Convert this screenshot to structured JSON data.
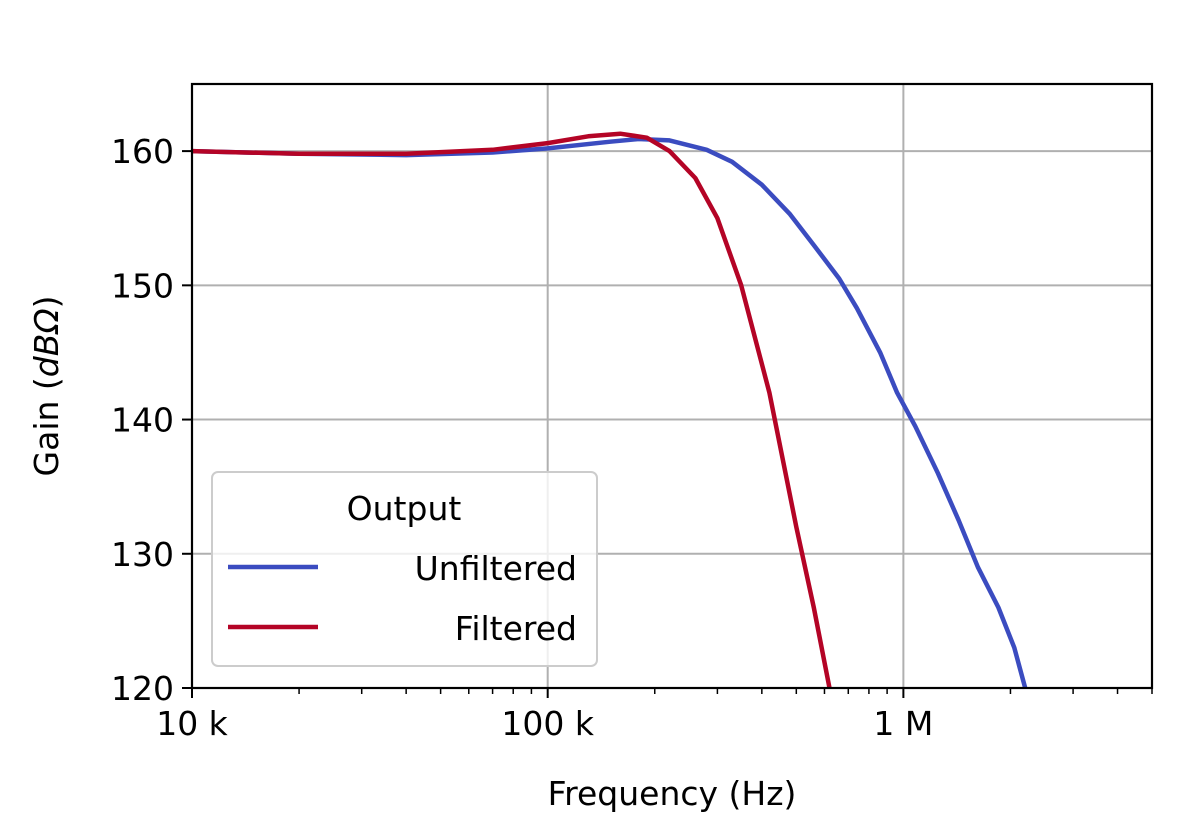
{
  "chart_data": {
    "type": "line",
    "title": "",
    "xlabel": "Frequency (Hz)",
    "ylabel_prefix": "Gain (",
    "ylabel_unit": "dBΩ",
    "ylabel_suffix": ")",
    "x_scale": "log",
    "xlim": [
      10000,
      5000000
    ],
    "ylim": [
      120,
      165
    ],
    "grid": true,
    "x_ticks": [
      {
        "value": 10000,
        "label": "10 k"
      },
      {
        "value": 100000,
        "label": "100 k"
      },
      {
        "value": 1000000,
        "label": "1 M"
      }
    ],
    "y_ticks": [
      {
        "value": 120,
        "label": "120"
      },
      {
        "value": 130,
        "label": "130"
      },
      {
        "value": 140,
        "label": "140"
      },
      {
        "value": 150,
        "label": "150"
      },
      {
        "value": 160,
        "label": "160"
      }
    ],
    "legend": {
      "title": "Output",
      "placement": "lower-left"
    },
    "series": [
      {
        "name": "Unfiltered",
        "color": "#3b4cc0",
        "points": [
          [
            10000,
            160.0
          ],
          [
            20000,
            159.8
          ],
          [
            40000,
            159.7
          ],
          [
            70000,
            159.9
          ],
          [
            100000,
            160.2
          ],
          [
            150000,
            160.7
          ],
          [
            180000,
            160.9
          ],
          [
            220000,
            160.8
          ],
          [
            280000,
            160.1
          ],
          [
            330000,
            159.2
          ],
          [
            400000,
            157.5
          ],
          [
            480000,
            155.3
          ],
          [
            560000,
            153.0
          ],
          [
            660000,
            150.5
          ],
          [
            740000,
            148.3
          ],
          [
            860000,
            145.0
          ],
          [
            960000,
            142.0
          ],
          [
            1080000,
            139.5
          ],
          [
            1250000,
            136.0
          ],
          [
            1430000,
            132.5
          ],
          [
            1620000,
            129.0
          ],
          [
            1850000,
            126.0
          ],
          [
            2050000,
            123.0
          ],
          [
            2200000,
            120.0
          ]
        ]
      },
      {
        "name": "Filtered",
        "color": "#b40426",
        "points": [
          [
            10000,
            160.0
          ],
          [
            20000,
            159.8
          ],
          [
            40000,
            159.8
          ],
          [
            70000,
            160.1
          ],
          [
            100000,
            160.6
          ],
          [
            130000,
            161.1
          ],
          [
            160000,
            161.3
          ],
          [
            190000,
            161.0
          ],
          [
            220000,
            160.0
          ],
          [
            260000,
            158.0
          ],
          [
            300000,
            155.0
          ],
          [
            350000,
            150.0
          ],
          [
            420000,
            142.0
          ],
          [
            500000,
            132.0
          ],
          [
            560000,
            126.0
          ],
          [
            620000,
            120.0
          ]
        ]
      }
    ]
  }
}
